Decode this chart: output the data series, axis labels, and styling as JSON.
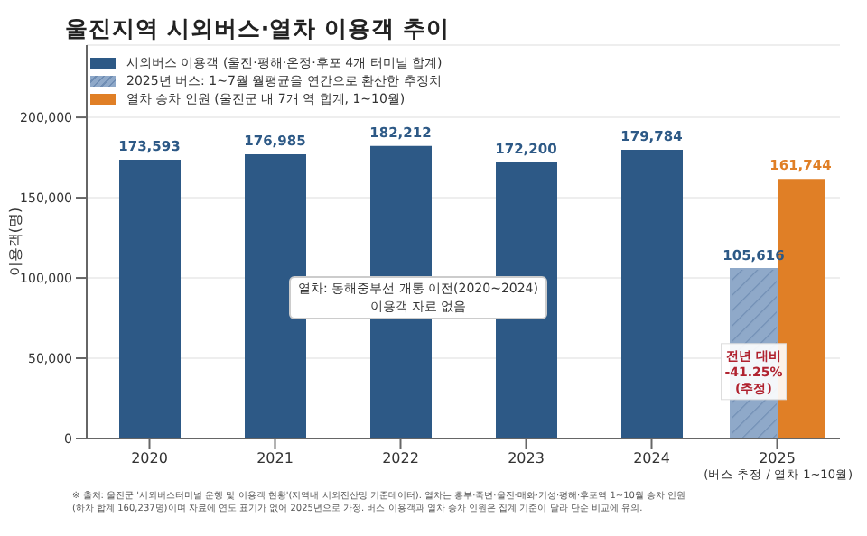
{
  "chart_data": {
    "type": "bar",
    "title": "울진지역 시외버스·열차 이용객 추이",
    "categories": [
      "2020",
      "2021",
      "2022",
      "2023",
      "2024",
      "2025"
    ],
    "series": [
      {
        "name": "시외버스 이용객 (울진·평해·온정·후포 4개 터미널 합계)",
        "color": "#2d5986",
        "values": [
          173593,
          176985,
          182212,
          172200,
          179784,
          null
        ],
        "value_labels": [
          "173,593",
          "176,985",
          "182,212",
          "172,200",
          "179,784",
          null
        ]
      },
      {
        "name": "2025년 버스: 1~7월 월평균을 연간으로 환산한 추정치",
        "color": "#8fa9c9",
        "values": [
          null,
          null,
          null,
          null,
          null,
          105616
        ],
        "value_labels": [
          null,
          null,
          null,
          null,
          null,
          "105,616"
        ]
      },
      {
        "name": "열차 승차 인원 (울진군 내 7개 역 합계, 1~10월)",
        "color": "#e07f26",
        "values": [
          null,
          null,
          null,
          null,
          null,
          161744
        ],
        "value_labels": [
          null,
          null,
          null,
          null,
          null,
          "161,744"
        ]
      }
    ],
    "ylabel": "이용객(명)",
    "ylim": [
      0,
      245000
    ],
    "yticks": [
      0,
      {
        "value": 50000,
        "label": "50,000"
      },
      {
        "value": 100000,
        "label": "100,000"
      },
      {
        "value": 150000,
        "label": "150,000"
      },
      {
        "value": 200000,
        "label": "200,000"
      }
    ],
    "grid": "y",
    "legend": "top left",
    "annotations": [
      "열차: 동해중부선 개통 이전(2020~2024)\n이용객 자료 없음",
      {
        "text": "전년 대비\n-41.25%\n(추정)",
        "x": "2025",
        "y": 40000
      },
      "(버스 추정 / 열차 1~10월)",
      "※ 출처: 울진군 '시외버스터미널 운행 및 이용객 현황'(지역내 시외전산망 기준데이터). 열차는 흥부·죽변·울진·매화·기성·평해·후포역 1~10월 승차 인원\n(하차 합계 160,237명)이며 자료에 연도 표기가 없어 2025년으로 가정. 버스 이용객과 열차 승차 인원은 집계 기준이 달라 단순 비교에 유의."
    ]
  }
}
